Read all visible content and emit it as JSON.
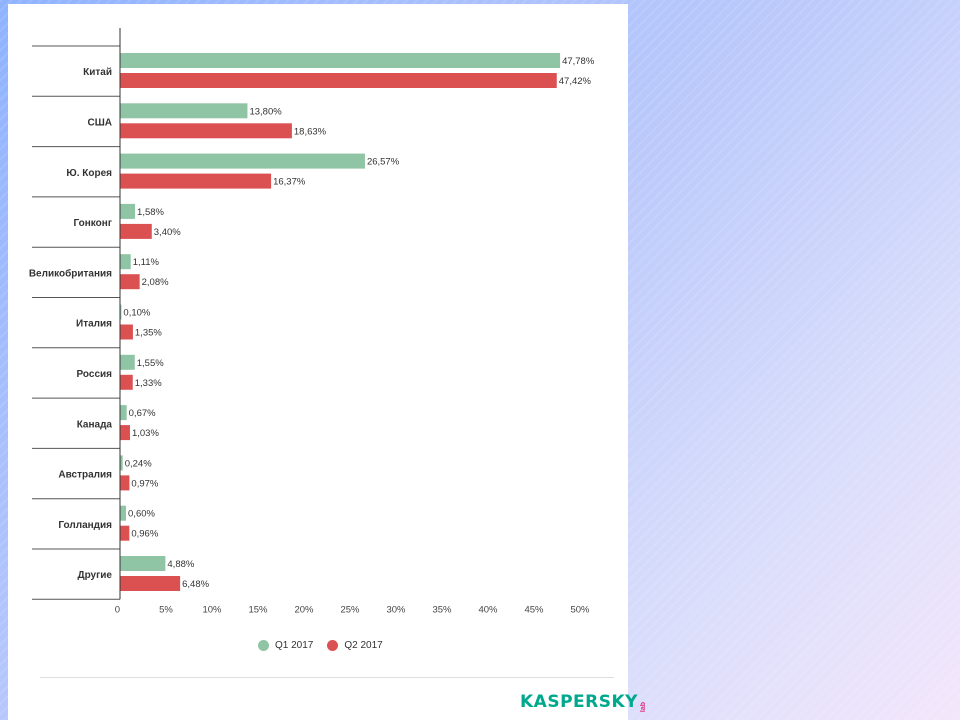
{
  "colors": {
    "q1": "#8fc4a4",
    "q2": "#db5152",
    "axis": "#333333",
    "separator": "#555555",
    "logo_green": "#00a88e",
    "logo_pink": "#e0287a"
  },
  "chart_data": {
    "type": "bar",
    "orientation": "horizontal",
    "categories": [
      "Китай",
      "США",
      "Ю. Корея",
      "Гонконг",
      "Великобритания",
      "Италия",
      "Россия",
      "Канада",
      "Австралия",
      "Голландия",
      "Другие"
    ],
    "series": [
      {
        "name": "Q1 2017",
        "values": [
          47.78,
          13.8,
          26.57,
          1.58,
          1.11,
          0.1,
          1.55,
          0.67,
          0.24,
          0.6,
          4.88
        ],
        "labels": [
          "47,78%",
          "13,80%",
          "26,57%",
          "1,58%",
          "1,11%",
          "0,10%",
          "1,55%",
          "0,67%",
          "0,24%",
          "0,60%",
          "4,88%"
        ]
      },
      {
        "name": "Q2 2017",
        "values": [
          47.42,
          18.63,
          16.37,
          3.4,
          2.08,
          1.35,
          1.33,
          1.03,
          0.97,
          0.96,
          6.48
        ],
        "labels": [
          "47,42%",
          "18,63%",
          "16,37%",
          "3,40%",
          "2,08%",
          "1,35%",
          "1,33%",
          "1,03%",
          "0,97%",
          "0,96%",
          "6,48%"
        ]
      }
    ],
    "xlim": [
      0,
      50
    ],
    "xticks": [
      0,
      5,
      10,
      15,
      20,
      25,
      30,
      35,
      40,
      45,
      50
    ],
    "xtick_labels": [
      "0",
      "5%",
      "10%",
      "15%",
      "20%",
      "25%",
      "30%",
      "35%",
      "40%",
      "45%",
      "50%"
    ],
    "title": "",
    "xlabel": "",
    "ylabel": "",
    "legend_position": "bottom-center",
    "grid": false
  },
  "legend": {
    "q1_label": "Q1 2017",
    "q2_label": "Q2 2017"
  },
  "logo": {
    "text": "KASPERSKY",
    "sub": "lab"
  }
}
